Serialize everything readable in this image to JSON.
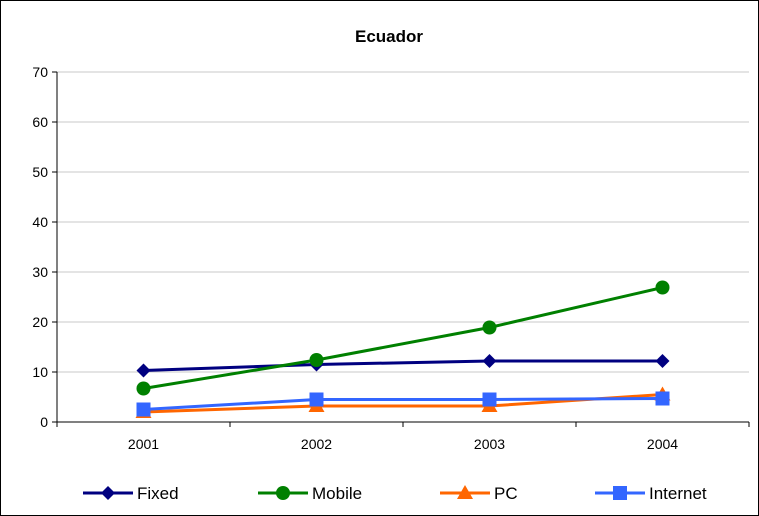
{
  "chart_data": {
    "type": "line",
    "title": "Ecuador",
    "xlabel": "",
    "ylabel": "",
    "categories": [
      "2001",
      "2002",
      "2003",
      "2004"
    ],
    "ylim": [
      0,
      70
    ],
    "yticks": [
      0,
      10,
      20,
      30,
      40,
      50,
      60,
      70
    ],
    "grid": true,
    "legend_position": "bottom",
    "series": [
      {
        "name": "Fixed",
        "values": [
          10.3,
          11.5,
          12.2,
          12.2
        ],
        "color": "#000080",
        "marker": "diamond"
      },
      {
        "name": "Mobile",
        "values": [
          6.7,
          12.4,
          18.9,
          26.9
        ],
        "color": "#008000",
        "marker": "circle"
      },
      {
        "name": "PC",
        "values": [
          2.0,
          3.2,
          3.2,
          5.5
        ],
        "color": "#FF6600",
        "marker": "triangle"
      },
      {
        "name": "Internet",
        "values": [
          2.5,
          4.5,
          4.5,
          4.7
        ],
        "color": "#3366FF",
        "marker": "square"
      }
    ]
  }
}
